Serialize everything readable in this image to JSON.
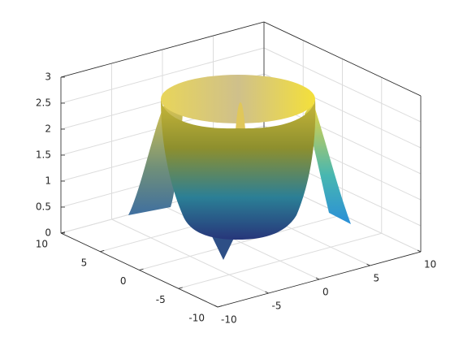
{
  "chart_data": {
    "type": "surface",
    "xlim": [
      -10,
      10
    ],
    "xticks": [
      -10,
      -5,
      0,
      5,
      10
    ],
    "ylim": [
      -10,
      10
    ],
    "yticks": [
      -10,
      -5,
      0,
      5,
      10
    ],
    "zlim": [
      0,
      3
    ],
    "zticks": [
      0,
      0.5,
      1,
      1.5,
      2,
      2.5,
      3
    ],
    "grid": true,
    "colormap": "parula"
  }
}
